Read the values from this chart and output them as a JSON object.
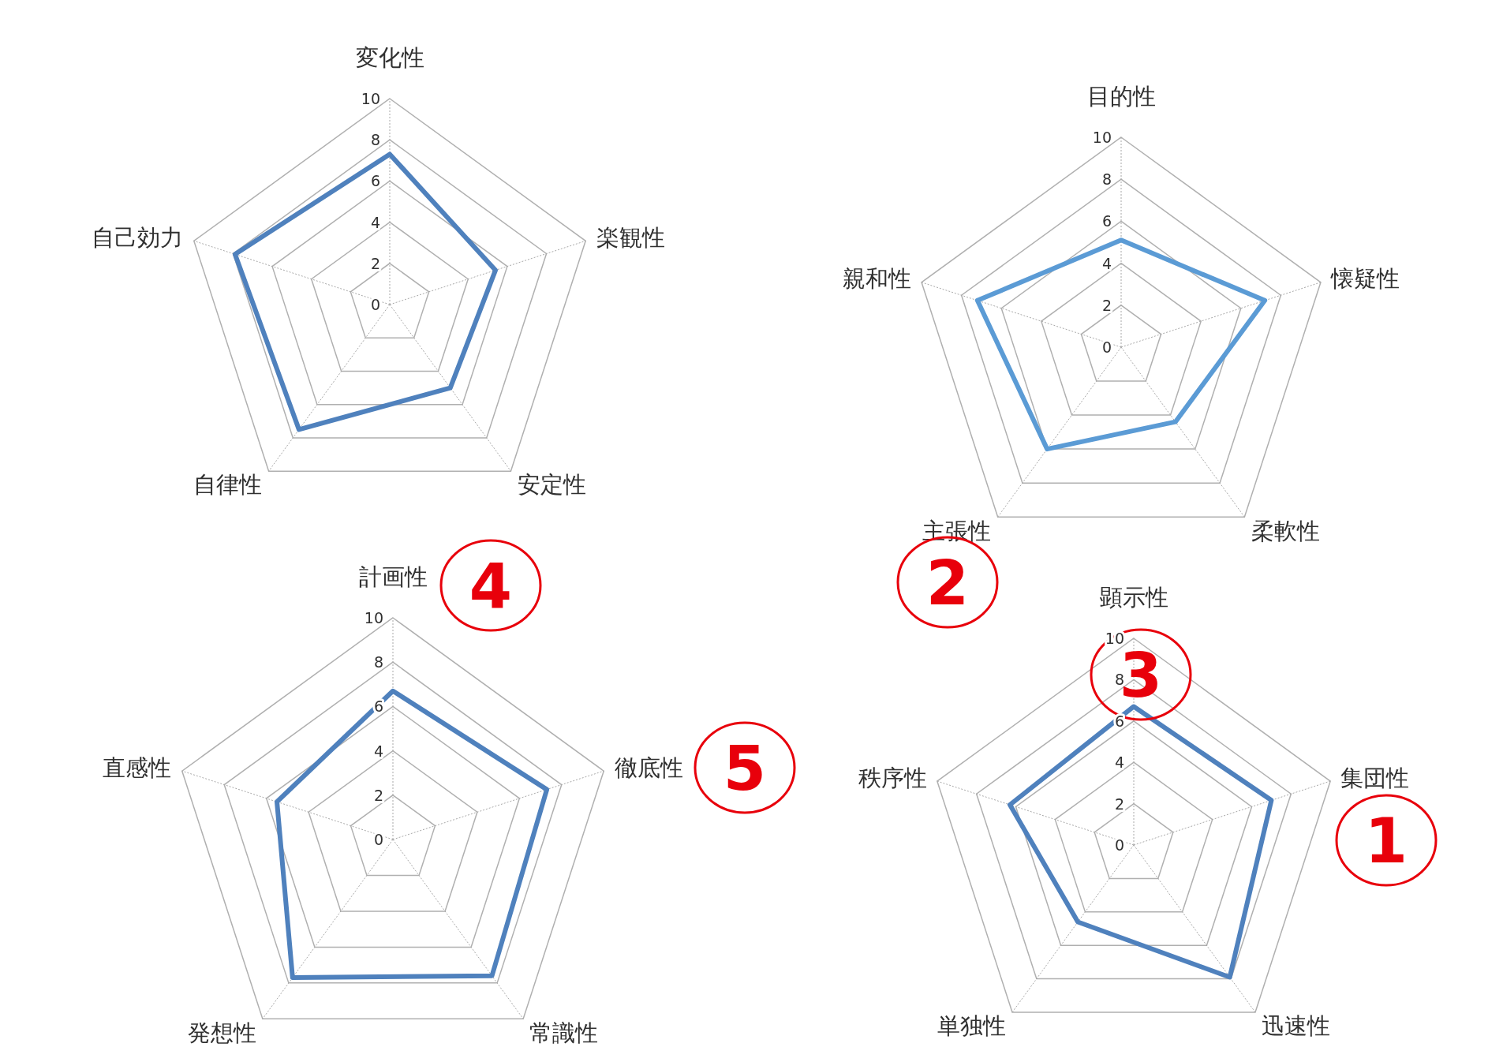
{
  "chart_data": [
    {
      "type": "radar",
      "categories": [
        "変化性",
        "楽観性",
        "安定性",
        "自律性",
        "自己効力"
      ],
      "grid": true,
      "ylim": [
        0,
        10
      ],
      "yticks": [
        0,
        2,
        4,
        6,
        8,
        10
      ],
      "series": [
        {
          "color": "#4f81bd",
          "values": [
            7.3,
            5.4,
            5.0,
            7.5,
            7.9
          ]
        }
      ]
    },
    {
      "type": "radar",
      "categories": [
        "目的性",
        "懐疑性",
        "柔軟性",
        "主張性",
        "親和性"
      ],
      "grid": true,
      "ylim": [
        0,
        10
      ],
      "yticks": [
        0,
        2,
        4,
        6,
        8,
        10
      ],
      "series": [
        {
          "color": "#5b9bd5",
          "values": [
            5.1,
            7.2,
            4.4,
            6.0,
            7.2
          ]
        }
      ],
      "annotations": [
        "2"
      ]
    },
    {
      "type": "radar",
      "categories": [
        "計画性",
        "徹底性",
        "常識性",
        "発想性",
        "直感性"
      ],
      "grid": true,
      "ylim": [
        0,
        10
      ],
      "yticks": [
        0,
        2,
        4,
        6,
        8,
        10
      ],
      "series": [
        {
          "color": "#4f81bd",
          "values": [
            6.7,
            7.3,
            7.6,
            7.7,
            5.5
          ]
        }
      ],
      "annotations": [
        "4",
        "5"
      ]
    },
    {
      "type": "radar",
      "categories": [
        "顕示性",
        "集団性",
        "迅速性",
        "単独性",
        "秩序性"
      ],
      "grid": true,
      "ylim": [
        0,
        10
      ],
      "yticks": [
        0,
        2,
        4,
        6,
        8,
        10
      ],
      "series": [
        {
          "color": "#4f81bd",
          "values": [
            6.7,
            7.0,
            7.9,
            4.6,
            6.3
          ]
        }
      ],
      "annotations": [
        "3",
        "1"
      ]
    }
  ]
}
